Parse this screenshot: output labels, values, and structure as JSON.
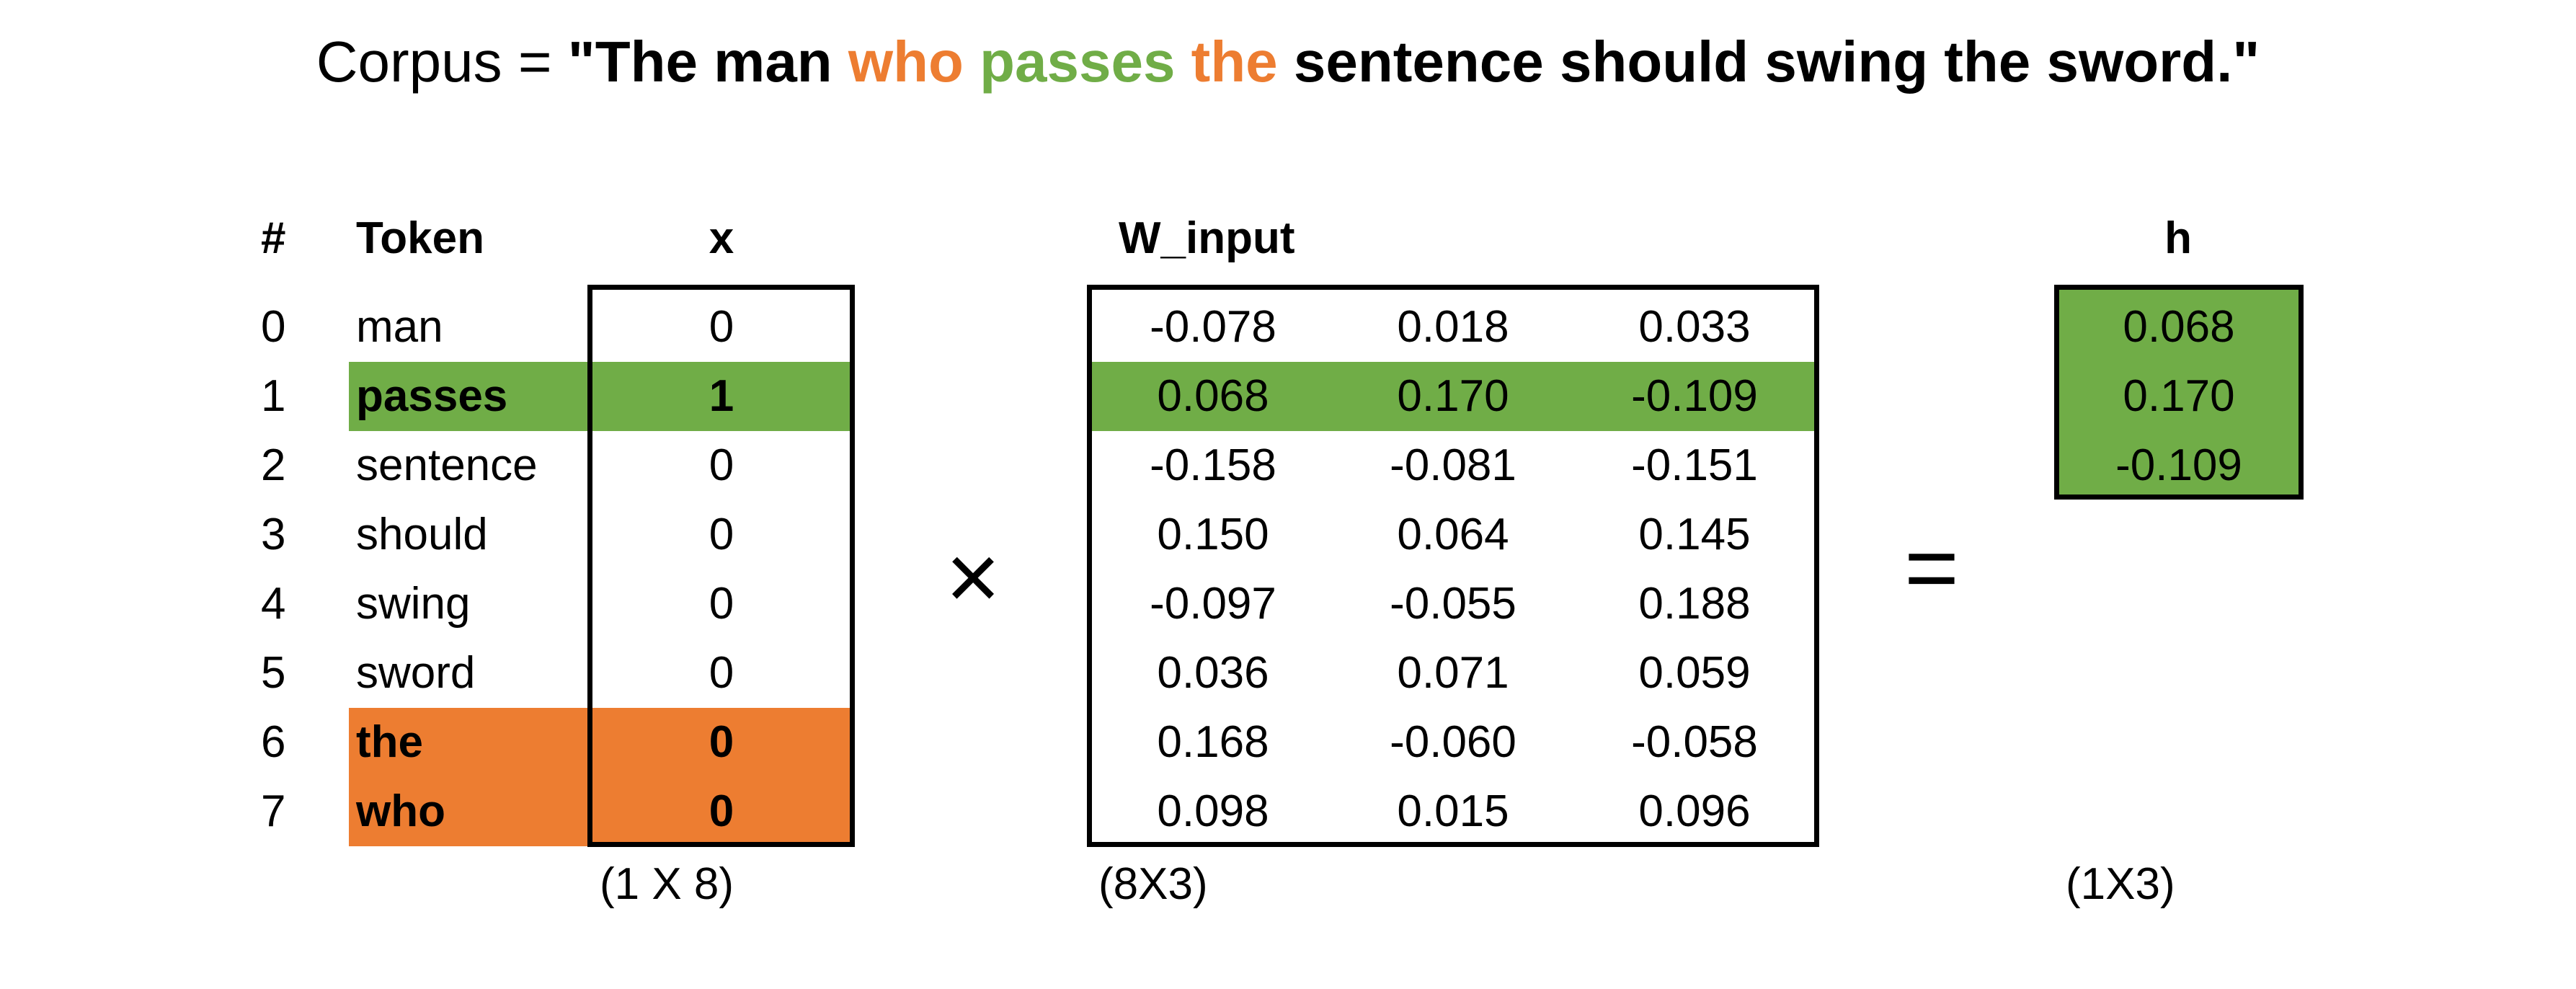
{
  "title": {
    "prefix": "Corpus = ",
    "segments": [
      {
        "text": "\"The man ",
        "color": "#000000"
      },
      {
        "text": "who",
        "color": "#ED7D31"
      },
      {
        "text": " ",
        "color": "#000000"
      },
      {
        "text": "passes",
        "color": "#70AD47"
      },
      {
        "text": " ",
        "color": "#000000"
      },
      {
        "text": "the",
        "color": "#ED7D31"
      },
      {
        "text": " sentence should swing the sword.\"",
        "color": "#000000"
      }
    ]
  },
  "colors": {
    "context": "#ED7D31",
    "target": "#70AD47",
    "border": "#000000"
  },
  "headers": {
    "index": "#",
    "token": "Token",
    "x": "x",
    "w_input": "W_input",
    "h": "h"
  },
  "rows": [
    {
      "index": "0",
      "token": "man",
      "x": "0",
      "highlight": "none"
    },
    {
      "index": "1",
      "token": "passes",
      "x": "1",
      "highlight": "target"
    },
    {
      "index": "2",
      "token": "sentence",
      "x": "0",
      "highlight": "none"
    },
    {
      "index": "3",
      "token": "should",
      "x": "0",
      "highlight": "none"
    },
    {
      "index": "4",
      "token": "swing",
      "x": "0",
      "highlight": "none"
    },
    {
      "index": "5",
      "token": "sword",
      "x": "0",
      "highlight": "none"
    },
    {
      "index": "6",
      "token": "the",
      "x": "0",
      "highlight": "context"
    },
    {
      "index": "7",
      "token": "who",
      "x": "0",
      "highlight": "context"
    }
  ],
  "w_input": [
    [
      "-0.078",
      "0.018",
      "0.033"
    ],
    [
      "0.068",
      "0.170",
      "-0.109"
    ],
    [
      "-0.158",
      "-0.081",
      "-0.151"
    ],
    [
      "0.150",
      "0.064",
      "0.145"
    ],
    [
      "-0.097",
      "-0.055",
      "0.188"
    ],
    [
      "0.036",
      "0.071",
      "0.059"
    ],
    [
      "0.168",
      "-0.060",
      "-0.058"
    ],
    [
      "0.098",
      "0.015",
      "0.096"
    ]
  ],
  "w_input_highlight_row": 1,
  "h": [
    "0.068",
    "0.170",
    "-0.109"
  ],
  "operators": {
    "multiply": "×",
    "equals": "="
  },
  "dims": {
    "x": "(1 X 8)",
    "w_input": "(8X3)",
    "h": "(1X3)"
  }
}
